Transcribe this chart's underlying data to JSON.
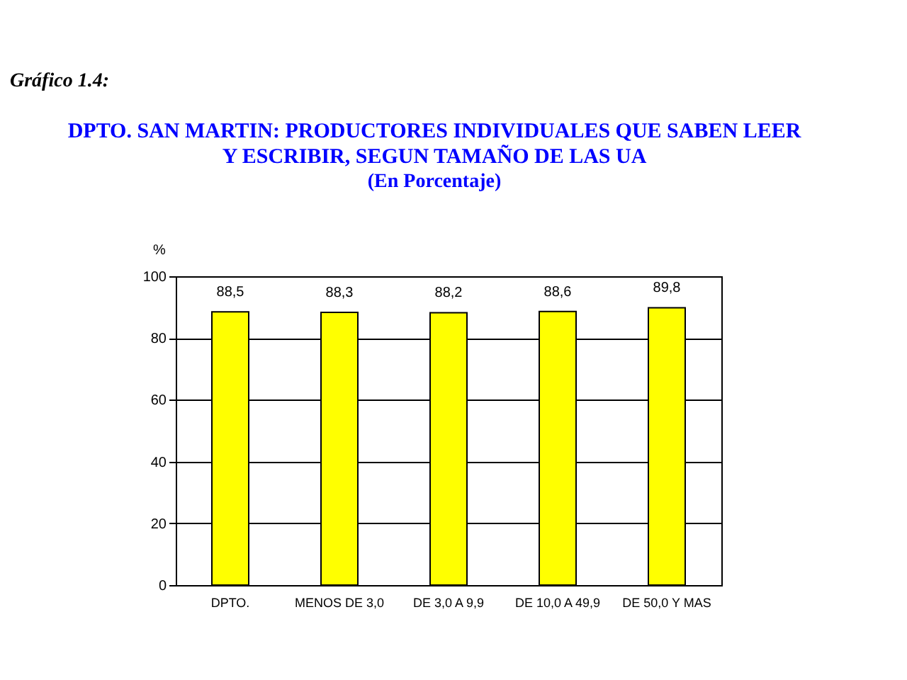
{
  "chart_data": {
    "type": "bar",
    "title": "DPTO. SAN MARTIN: PRODUCTORES INDIVIDUALES QUE SABEN LEER Y ESCRIBIR, SEGUN TAMAÑO DE LAS UA",
    "subtitle": "(En Porcentaje)",
    "ylabel": "%",
    "annotations": [
      "Gráfico 1.4:"
    ],
    "categories": [
      "DPTO.",
      "MENOS DE 3,0",
      "DE 3,0 A 9,9",
      "DE 10,0 A 49,9",
      "DE 50,0 Y MAS"
    ],
    "values": [
      88.5,
      88.3,
      88.2,
      88.6,
      89.8
    ],
    "value_labels": [
      "88,5",
      "88,3",
      "88,2",
      "88,6",
      "89,8"
    ],
    "color": "#ffff00",
    "ylim": [
      0,
      100
    ],
    "yticks": [
      0,
      20,
      40,
      60,
      80,
      100
    ],
    "grid": "y"
  }
}
